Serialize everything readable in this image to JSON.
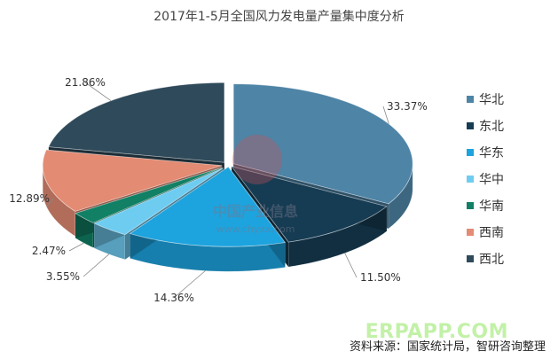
{
  "chart_data": {
    "type": "pie",
    "title": "2017年1-5月全国风力发电量产量集中度分析",
    "categories": [
      "华北",
      "东北",
      "华东",
      "华中",
      "华南",
      "西南",
      "西北"
    ],
    "values": [
      33.37,
      11.5,
      14.36,
      3.55,
      2.47,
      12.89,
      21.86
    ],
    "labels": [
      "33.37%",
      "11.50%",
      "14.36%",
      "3.55%",
      "2.47%",
      "12.89%",
      "21.86%"
    ],
    "colors": [
      "#4E84A6",
      "#163C53",
      "#1DA3DE",
      "#6FCCF1",
      "#118064",
      "#E38B73",
      "#2F4A5A"
    ],
    "style": "3d-exploded-pie",
    "legend_position": "right"
  },
  "source_note": "资料来源：国家统计局，智研咨询整理",
  "watermark": {
    "center_cn": "中国产业信息",
    "center_url": "www.chyxx.com",
    "bottom": "ERPAPP.COM"
  }
}
